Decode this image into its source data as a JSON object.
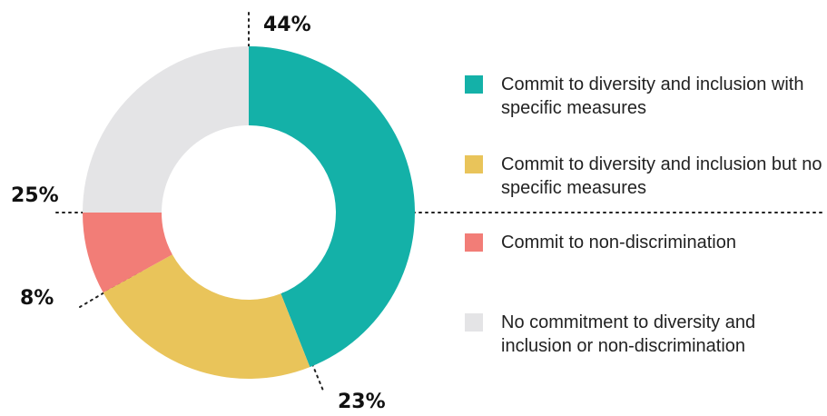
{
  "chart_data": {
    "type": "pie",
    "donut": true,
    "title": "",
    "categories": [
      "Commit to diversity and inclusion with specific measures",
      "Commit to diversity and inclusion but no specific measures",
      "Commit to non-discrimination",
      "No commitment to diversity and inclusion or non-discrimination"
    ],
    "values": [
      44,
      23,
      8,
      25
    ],
    "labels": [
      "44%",
      "23%",
      "8%",
      "25%"
    ],
    "colors": [
      "#14b1a8",
      "#e9c45a",
      "#f27d77",
      "#e4e4e6"
    ],
    "legend_position": "right"
  },
  "legend": {
    "items": [
      {
        "label": "Commit to diversity and inclusion with specific measures",
        "color": "#14b1a8"
      },
      {
        "label": "Commit to diversity and inclusion but no specific measures",
        "color": "#e9c45a"
      },
      {
        "label": "Commit to non-discrimination",
        "color": "#f27d77"
      },
      {
        "label": "No commitment to diversity and inclusion or non-discrimination",
        "color": "#e4e4e6"
      }
    ]
  }
}
